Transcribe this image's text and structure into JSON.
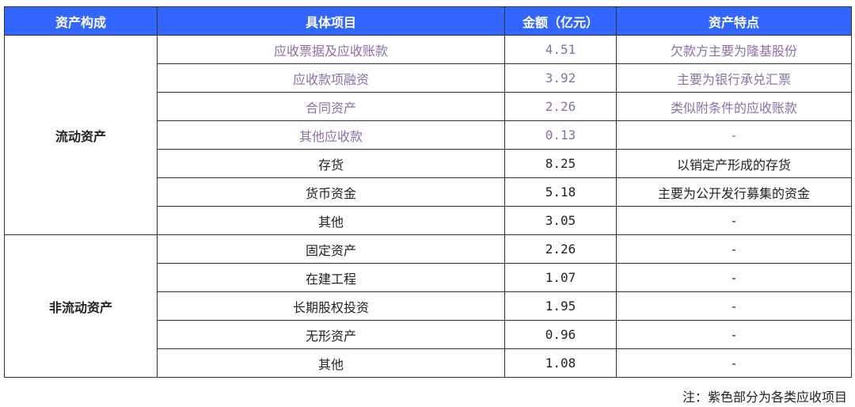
{
  "table": {
    "headers": [
      "资产构成",
      "具体项目",
      "金额（亿元）",
      "资产特点"
    ],
    "groups": [
      {
        "category": "流动资产",
        "rows": [
          {
            "item": "应收票据及应收账款",
            "amount": "4.51",
            "feature": "欠款方主要为隆基股份",
            "highlight": true
          },
          {
            "item": "应收款项融资",
            "amount": "3.92",
            "feature": "主要为银行承兑汇票",
            "highlight": true
          },
          {
            "item": "合同资产",
            "amount": "2.26",
            "feature": "类似附条件的应收账款",
            "highlight": true
          },
          {
            "item": "其他应收款",
            "amount": "0.13",
            "feature": "-",
            "highlight": true
          },
          {
            "item": "存货",
            "amount": "8.25",
            "feature": "以销定产形成的存货",
            "highlight": false
          },
          {
            "item": "货币资金",
            "amount": "5.18",
            "feature": "主要为公开发行募集的资金",
            "highlight": false
          },
          {
            "item": "其他",
            "amount": "3.05",
            "feature": "-",
            "highlight": false
          }
        ]
      },
      {
        "category": "非流动资产",
        "rows": [
          {
            "item": "固定资产",
            "amount": "2.26",
            "feature": "-",
            "highlight": false
          },
          {
            "item": "在建工程",
            "amount": "1.07",
            "feature": "-",
            "highlight": false
          },
          {
            "item": "长期股权投资",
            "amount": "1.95",
            "feature": "-",
            "highlight": false
          },
          {
            "item": "无形资产",
            "amount": "0.96",
            "feature": "-",
            "highlight": false
          },
          {
            "item": "其他",
            "amount": "1.08",
            "feature": "-",
            "highlight": false
          }
        ]
      }
    ]
  },
  "note": "注：紫色部分为各类应收项目",
  "colors": {
    "header_bg": "#3366ff",
    "highlight_text": "#8a6fa8"
  }
}
